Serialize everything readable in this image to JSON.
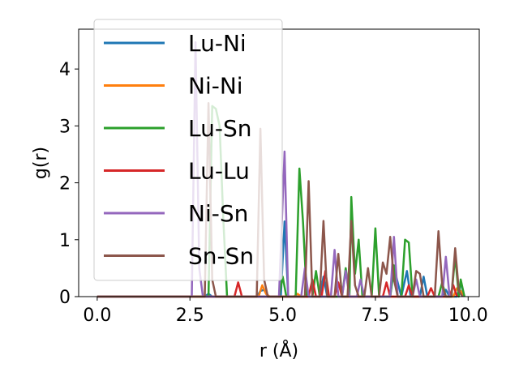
{
  "chart_data": {
    "type": "line",
    "title": "",
    "xlabel": "r (Å)",
    "ylabel": "g(r)",
    "xlim": [
      -0.5,
      10.3
    ],
    "ylim": [
      0,
      4.7
    ],
    "xticks": [
      "0.0",
      "2.5",
      "5.0",
      "7.5",
      "10.0"
    ],
    "yticks": [
      "0",
      "1",
      "2",
      "3",
      "4"
    ],
    "grid": false,
    "legend_position": "upper-left",
    "series": [
      {
        "name": "Lu-Ni",
        "color": "#1f77b4",
        "points": [
          [
            0,
            0
          ],
          [
            2.9,
            0
          ],
          [
            3.0,
            0.05
          ],
          [
            3.1,
            0
          ],
          [
            4.3,
            0
          ],
          [
            4.4,
            0.1
          ],
          [
            4.5,
            0.12
          ],
          [
            4.6,
            0
          ],
          [
            4.95,
            0
          ],
          [
            5.05,
            1.32
          ],
          [
            5.15,
            0
          ],
          [
            6.0,
            0
          ],
          [
            6.1,
            0.35
          ],
          [
            6.2,
            0
          ],
          [
            7.9,
            0
          ],
          [
            8.0,
            0.5
          ],
          [
            8.1,
            0.25
          ],
          [
            8.2,
            0
          ],
          [
            8.35,
            0.45
          ],
          [
            8.45,
            0
          ],
          [
            8.7,
            0
          ],
          [
            8.8,
            0.35
          ],
          [
            8.9,
            0
          ],
          [
            9.3,
            0
          ],
          [
            9.4,
            0.12
          ],
          [
            9.5,
            0
          ],
          [
            9.7,
            0
          ],
          [
            9.8,
            0.25
          ],
          [
            9.9,
            0
          ]
        ]
      },
      {
        "name": "Ni-Ni",
        "color": "#ff7f0e",
        "points": [
          [
            0,
            0
          ],
          [
            4.35,
            0
          ],
          [
            4.45,
            0.2
          ],
          [
            4.55,
            0.05
          ],
          [
            4.65,
            0
          ],
          [
            5.3,
            0
          ],
          [
            5.4,
            0.05
          ],
          [
            5.5,
            0
          ],
          [
            9.6,
            0
          ],
          [
            9.7,
            0.15
          ],
          [
            9.8,
            0.1
          ],
          [
            9.9,
            0
          ]
        ]
      },
      {
        "name": "Lu-Sn",
        "color": "#2ca02c",
        "points": [
          [
            0,
            0
          ],
          [
            3.0,
            0
          ],
          [
            3.1,
            3.35
          ],
          [
            3.2,
            3.3
          ],
          [
            3.3,
            3.0
          ],
          [
            3.4,
            1.35
          ],
          [
            3.5,
            0
          ],
          [
            4.9,
            0
          ],
          [
            5.0,
            0.35
          ],
          [
            5.1,
            0
          ],
          [
            5.35,
            0
          ],
          [
            5.45,
            2.25
          ],
          [
            5.55,
            1.3
          ],
          [
            5.65,
            0
          ],
          [
            5.8,
            0
          ],
          [
            5.9,
            0.45
          ],
          [
            6.0,
            0
          ],
          [
            6.6,
            0
          ],
          [
            6.7,
            0.5
          ],
          [
            6.8,
            0
          ],
          [
            6.85,
            1.75
          ],
          [
            6.95,
            0.4
          ],
          [
            7.05,
            1.0
          ],
          [
            7.15,
            0
          ],
          [
            7.4,
            0
          ],
          [
            7.5,
            1.2
          ],
          [
            7.6,
            0
          ],
          [
            7.9,
            0
          ],
          [
            8.0,
            0.55
          ],
          [
            8.1,
            0
          ],
          [
            8.2,
            0
          ],
          [
            8.3,
            1.0
          ],
          [
            8.4,
            0.95
          ],
          [
            8.5,
            0
          ],
          [
            9.2,
            0
          ],
          [
            9.3,
            0.25
          ],
          [
            9.4,
            0
          ],
          [
            9.55,
            0
          ],
          [
            9.65,
            0.72
          ],
          [
            9.75,
            0
          ],
          [
            9.8,
            0.3
          ],
          [
            9.9,
            0
          ]
        ]
      },
      {
        "name": "Lu-Lu",
        "color": "#d62728",
        "points": [
          [
            0,
            0
          ],
          [
            3.7,
            0
          ],
          [
            3.8,
            0.25
          ],
          [
            3.9,
            0
          ],
          [
            5.7,
            0
          ],
          [
            5.8,
            0.3
          ],
          [
            5.9,
            0
          ],
          [
            6.05,
            0
          ],
          [
            6.15,
            0.45
          ],
          [
            6.25,
            0
          ],
          [
            6.4,
            0
          ],
          [
            6.5,
            0.25
          ],
          [
            6.6,
            0
          ],
          [
            7.7,
            0
          ],
          [
            7.8,
            0.25
          ],
          [
            7.9,
            0
          ],
          [
            8.3,
            0
          ],
          [
            8.4,
            0.2
          ],
          [
            8.5,
            0
          ],
          [
            8.9,
            0
          ],
          [
            9.0,
            0.15
          ],
          [
            9.1,
            0
          ],
          [
            9.5,
            0
          ],
          [
            9.6,
            0.2
          ],
          [
            9.7,
            0
          ]
        ]
      },
      {
        "name": "Ni-Sn",
        "color": "#9467bd",
        "points": [
          [
            0,
            0
          ],
          [
            2.55,
            0
          ],
          [
            2.65,
            4.47
          ],
          [
            2.75,
            0.5
          ],
          [
            2.85,
            0
          ],
          [
            4.9,
            0
          ],
          [
            5.05,
            2.55
          ],
          [
            5.15,
            0
          ],
          [
            5.5,
            0
          ],
          [
            5.6,
            0.5
          ],
          [
            5.7,
            0
          ],
          [
            6.3,
            0
          ],
          [
            6.4,
            0.82
          ],
          [
            6.5,
            0
          ],
          [
            6.6,
            0
          ],
          [
            6.7,
            0.45
          ],
          [
            6.8,
            0
          ],
          [
            7.0,
            0
          ],
          [
            7.1,
            0.3
          ],
          [
            7.2,
            0
          ],
          [
            7.9,
            0
          ],
          [
            8.0,
            1.05
          ],
          [
            8.1,
            0
          ],
          [
            8.5,
            0
          ],
          [
            8.6,
            0.3
          ],
          [
            8.7,
            0
          ],
          [
            9.3,
            0
          ],
          [
            9.4,
            0.7
          ],
          [
            9.5,
            0
          ]
        ]
      },
      {
        "name": "Sn-Sn",
        "color": "#8c564b",
        "points": [
          [
            0,
            0
          ],
          [
            2.9,
            0
          ],
          [
            3.0,
            3.4
          ],
          [
            3.1,
            0.3
          ],
          [
            3.2,
            0
          ],
          [
            4.3,
            0
          ],
          [
            4.4,
            2.95
          ],
          [
            4.5,
            0.3
          ],
          [
            4.6,
            0
          ],
          [
            5.6,
            0
          ],
          [
            5.7,
            2.03
          ],
          [
            5.8,
            0
          ],
          [
            6.0,
            0
          ],
          [
            6.1,
            1.33
          ],
          [
            6.2,
            0
          ],
          [
            6.4,
            0
          ],
          [
            6.5,
            0.75
          ],
          [
            6.6,
            0
          ],
          [
            6.75,
            0
          ],
          [
            6.85,
            1.33
          ],
          [
            6.95,
            0.2
          ],
          [
            7.05,
            0
          ],
          [
            7.2,
            0
          ],
          [
            7.3,
            0.5
          ],
          [
            7.4,
            0
          ],
          [
            7.6,
            0
          ],
          [
            7.7,
            0.6
          ],
          [
            7.8,
            0.4
          ],
          [
            7.9,
            1.05
          ],
          [
            8.0,
            0.3
          ],
          [
            8.1,
            0
          ],
          [
            8.5,
            0
          ],
          [
            8.6,
            0.45
          ],
          [
            8.7,
            0.4
          ],
          [
            8.8,
            0
          ],
          [
            9.1,
            0
          ],
          [
            9.2,
            1.15
          ],
          [
            9.3,
            0.2
          ],
          [
            9.4,
            0
          ],
          [
            9.55,
            0
          ],
          [
            9.65,
            0.85
          ],
          [
            9.75,
            0.1
          ],
          [
            9.85,
            0
          ]
        ]
      }
    ]
  }
}
